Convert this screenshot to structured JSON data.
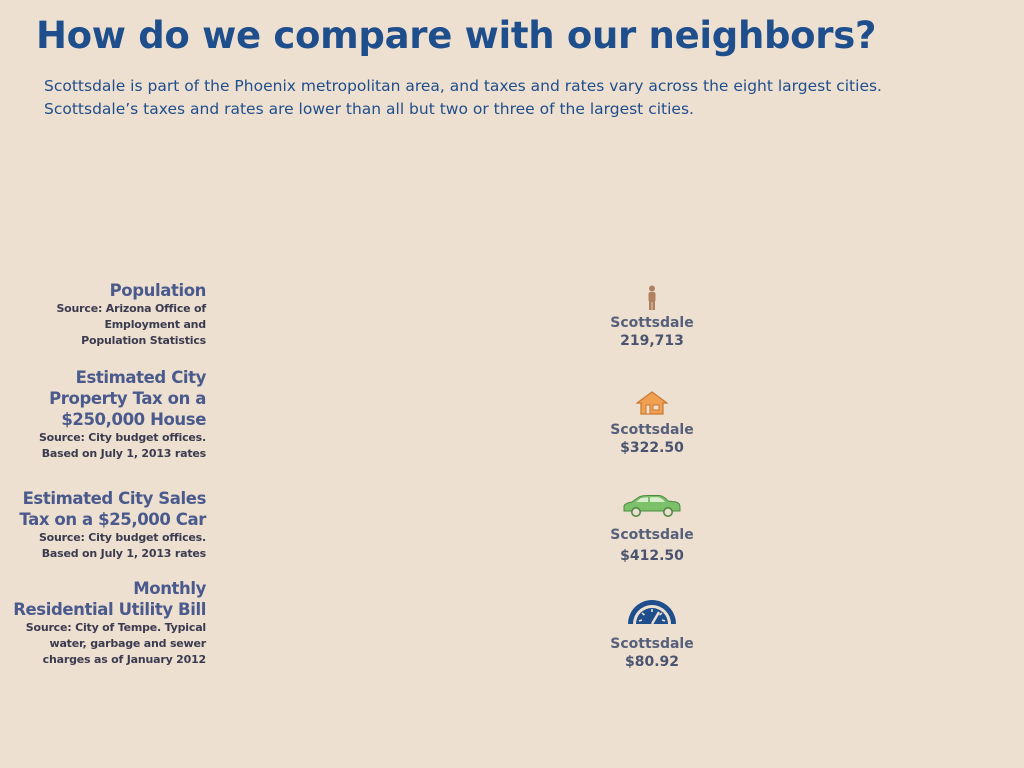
{
  "slide": {
    "title": "How do we compare with our neighbors?",
    "subtitle_line1": "Scottsdale is part of the Phoenix metropolitan area, and taxes and rates vary across the eight largest cities.",
    "subtitle_line2": "Scottsdale’s taxes and rates are lower than all but two or three of the largest cities."
  },
  "rows": [
    {
      "heading": [
        "Population"
      ],
      "source": [
        "Source: Arizona Office of",
        "Employment and",
        "Population Statistics"
      ],
      "city": "Scottsdale",
      "value": "219,713",
      "icon": "person-icon"
    },
    {
      "heading": [
        "Estimated City",
        "Property Tax on a",
        "$250,000 House"
      ],
      "source": [
        "Source: City budget offices.",
        "Based on July 1, 2013 rates"
      ],
      "city": "Scottsdale",
      "value": "$322.50",
      "icon": "house-icon"
    },
    {
      "heading": [
        "Estimated City Sales",
        "Tax on a $25,000 Car"
      ],
      "source": [
        "Source: City budget offices.",
        "Based on July 1, 2013 rates"
      ],
      "city": "Scottsdale",
      "value": "$412.50",
      "icon": "car-icon"
    },
    {
      "heading": [
        "Monthly",
        "Residential Utility Bill"
      ],
      "source": [
        "Source: City of Tempe. Typical",
        "water, garbage and sewer",
        "charges as of January 2012"
      ],
      "city": "Scottsdale",
      "value": "$80.92",
      "icon": "gauge-icon"
    }
  ],
  "colors": {
    "background": "#eee0d0",
    "title": "#1f4e8c",
    "heading": "#4a5a8c",
    "person": "#b08060",
    "house": "#f0a050",
    "car": "#7cc06a",
    "gauge": "#1f4e8c"
  }
}
